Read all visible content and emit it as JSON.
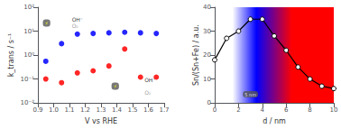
{
  "chart_data": [
    {
      "type": "scatter",
      "xlabel": "V vs RHE",
      "ylabel": "k_trans / s⁻¹",
      "log": "y",
      "xlim": [
        0.9,
        1.7
      ],
      "xticks": [
        0.9,
        {
          "value": 1.0,
          "label": "1.0"
        },
        1.1,
        1.2,
        1.3,
        1.4,
        1.5,
        1.6,
        1.7
      ],
      "ylim": [
        0.01,
        100
      ],
      "yticks": [
        {
          "value": 0.01,
          "label": "10⁻²"
        },
        {
          "value": 0.1,
          "label": "10⁻¹"
        },
        {
          "value": 1,
          "label": "10⁰"
        },
        {
          "value": 10,
          "label": "10¹"
        },
        {
          "value": 100,
          "label": "10²"
        }
      ],
      "grid": false,
      "marker": "o",
      "series": [
        {
          "color": "blue",
          "x": [
            0.95,
            1.05,
            1.15,
            1.25,
            1.35,
            1.45,
            1.55,
            1.65
          ],
          "values": [
            0.55,
            3.0,
            7.5,
            8.0,
            8.5,
            9.0,
            8.5,
            8.0
          ]
        },
        {
          "color": "red",
          "x": [
            0.95,
            1.05,
            1.15,
            1.25,
            1.35,
            1.45,
            1.55,
            1.65
          ],
          "values": [
            0.1,
            0.07,
            0.18,
            0.22,
            0.35,
            1.8,
            0.12,
            0.12
          ]
        }
      ],
      "annotations": [
        {
          "text": "⚡",
          "x": 0.955,
          "y": 22,
          "color": "yellow"
        },
        {
          "text": "OH⁻",
          "x": 1.115,
          "y": 23.5,
          "color": "black"
        },
        {
          "text": "O₂",
          "x": 1.115,
          "y": 21.0,
          "color": "gray"
        },
        {
          "text": "⚡",
          "x": 1.39,
          "y": 0.05,
          "color": "yellow"
        },
        {
          "text": "OH⁻",
          "x": 1.575,
          "y": 0.07,
          "color": "black"
        },
        {
          "text": "O₂",
          "x": 1.575,
          "y": 0.035,
          "color": "gray"
        }
      ]
    },
    {
      "type": "line",
      "xlabel": "d / nm",
      "ylabel": "Sn/(Sn+Fe) / a.u.",
      "xlim": [
        0,
        10
      ],
      "xticks": [
        0,
        2,
        4,
        6,
        8,
        10
      ],
      "ylim": [
        0,
        40
      ],
      "yticks": [
        0,
        10,
        20,
        30,
        40
      ],
      "grid": false,
      "marker": "o",
      "series": [
        {
          "color": "black",
          "x": [
            0.0,
            1.0,
            2.0,
            3.0,
            4.0,
            5.0,
            6.0,
            7.0,
            8.0,
            9.0,
            10.0
          ],
          "values": [
            18,
            27,
            30,
            35,
            35,
            28,
            22,
            15,
            10,
            7,
            6
          ]
        }
      ],
      "annotations": [
        {
          "text": "5 nm",
          "x": 3,
          "y": 3.6,
          "color": "white"
        }
      ]
    }
  ]
}
